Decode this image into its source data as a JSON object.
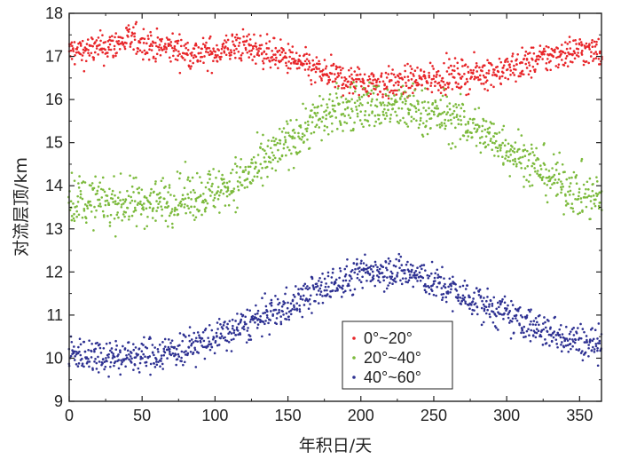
{
  "chart_data": {
    "type": "scatter",
    "title": "",
    "xlabel": "年积日/天",
    "ylabel": "对流层顶/km",
    "xlim": [
      0,
      365
    ],
    "ylim": [
      9,
      18
    ],
    "xticks": [
      0,
      50,
      100,
      150,
      200,
      250,
      300,
      350
    ],
    "yticks": [
      9,
      10,
      11,
      12,
      13,
      14,
      15,
      16,
      17,
      18
    ],
    "legend_position": "bottom-center",
    "series": [
      {
        "name": "0°~20°",
        "color": "#e8262a",
        "x": [
          0,
          15,
          30,
          40,
          50,
          60,
          70,
          80,
          90,
          100,
          110,
          120,
          130,
          140,
          150,
          160,
          170,
          180,
          190,
          200,
          210,
          220,
          230,
          240,
          250,
          260,
          270,
          280,
          290,
          300,
          310,
          320,
          330,
          340,
          350,
          360,
          365
        ],
        "y": [
          17.1,
          17.15,
          17.25,
          17.4,
          17.35,
          17.2,
          17.2,
          17.1,
          17.05,
          17.1,
          17.2,
          17.25,
          17.15,
          17.05,
          16.95,
          16.8,
          16.65,
          16.55,
          16.45,
          16.4,
          16.4,
          16.35,
          16.4,
          16.45,
          16.5,
          16.55,
          16.55,
          16.6,
          16.65,
          16.7,
          16.8,
          16.9,
          17.0,
          17.1,
          17.15,
          17.1,
          17.1
        ],
        "spread": 0.18
      },
      {
        "name": "20°~40°",
        "color": "#7cba3c",
        "x": [
          0,
          15,
          30,
          45,
          60,
          75,
          90,
          100,
          110,
          120,
          130,
          140,
          150,
          160,
          170,
          180,
          190,
          200,
          210,
          220,
          230,
          240,
          250,
          260,
          270,
          280,
          290,
          300,
          310,
          320,
          330,
          340,
          350,
          360,
          365
        ],
        "y": [
          13.7,
          13.65,
          13.6,
          13.6,
          13.65,
          13.7,
          13.8,
          13.9,
          14.0,
          14.2,
          14.4,
          14.7,
          15.0,
          15.3,
          15.55,
          15.7,
          15.8,
          15.85,
          15.85,
          15.8,
          15.8,
          15.75,
          15.65,
          15.6,
          15.45,
          15.3,
          15.1,
          14.9,
          14.7,
          14.45,
          14.2,
          14.0,
          13.85,
          13.7,
          13.65
        ],
        "spread": 0.28
      },
      {
        "name": "40°~60°",
        "color": "#2e3192",
        "x": [
          0,
          15,
          30,
          45,
          60,
          75,
          90,
          100,
          110,
          120,
          130,
          140,
          150,
          160,
          170,
          180,
          190,
          200,
          210,
          220,
          230,
          240,
          250,
          260,
          270,
          280,
          290,
          300,
          310,
          320,
          330,
          340,
          350,
          360,
          365
        ],
        "y": [
          10.1,
          10.1,
          10.05,
          10.05,
          10.1,
          10.2,
          10.35,
          10.45,
          10.6,
          10.75,
          10.9,
          11.05,
          11.2,
          11.4,
          11.55,
          11.7,
          11.85,
          11.95,
          12.05,
          12.05,
          12.0,
          11.9,
          11.75,
          11.6,
          11.45,
          11.3,
          11.15,
          11.0,
          10.85,
          10.7,
          10.6,
          10.5,
          10.4,
          10.35,
          10.35
        ],
        "spread": 0.2
      }
    ]
  }
}
